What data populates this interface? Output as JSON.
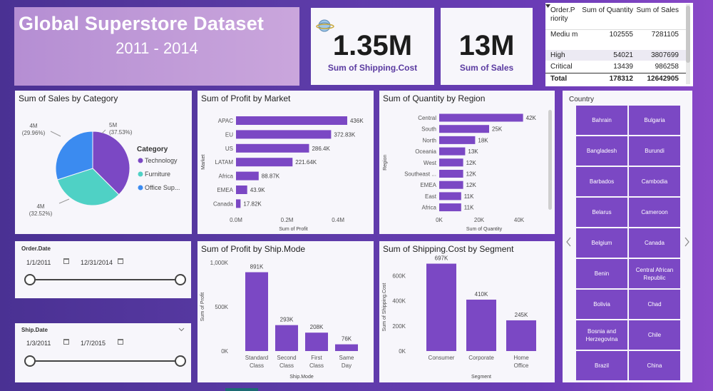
{
  "header": {
    "title": "Global Superstore Dataset",
    "years": "2011 - 2014"
  },
  "kpis": [
    {
      "value": "1.35M",
      "label": "Sum of Shipping.Cost"
    },
    {
      "value": "13M",
      "label": "Sum of Sales"
    }
  ],
  "priority_table": {
    "headers": [
      "Order.P riority",
      "Sum of Quantity",
      "Sum of Sales"
    ],
    "rows": [
      {
        "name": "Mediu m",
        "qty": "102555",
        "sales": "7281105"
      },
      {
        "name": "High",
        "qty": "54021",
        "sales": "3807699"
      },
      {
        "name": "Critical",
        "qty": "13439",
        "sales": "986258"
      }
    ],
    "total": {
      "name": "Total",
      "qty": "178312",
      "sales": "12642905"
    }
  },
  "slicers": {
    "order_date": {
      "label": "Order.Date",
      "start": "1/1/2011",
      "end": "12/31/2014"
    },
    "ship_date": {
      "label": "Ship.Date",
      "start": "1/3/2011",
      "end": "1/7/2015"
    }
  },
  "country": {
    "label": "Country",
    "left_col": [
      "Bahrain",
      "Bangladesh",
      "Barbados",
      "Belarus",
      "Belgium",
      "Benin",
      "Bolivia",
      "Bosnia and Herzegovina",
      "Brazil"
    ],
    "right_col": [
      "Bulgaria",
      "Burundi",
      "Cambodia",
      "Cameroon",
      "Canada",
      "Central African Republic",
      "Chad",
      "Chile",
      "China"
    ]
  },
  "colors": {
    "bar": "#7b48c4",
    "pie": [
      "#7b48c4",
      "#4fd1c5",
      "#3b8bf0"
    ]
  },
  "chart_data": [
    {
      "type": "pie",
      "title": "Sum of Sales by Category",
      "legend_title": "Category",
      "categories": [
        "Technology",
        "Furniture",
        "Office Sup..."
      ],
      "values": [
        4.74,
        4.11,
        3.79
      ],
      "value_labels": [
        "5M",
        "4M",
        "4M"
      ],
      "percent_labels": [
        "(37.53%)",
        "(32.52%)",
        "(29.96%)"
      ]
    },
    {
      "type": "bar",
      "orientation": "horizontal",
      "title": "Sum of Profit by Market",
      "categories": [
        "APAC",
        "EU",
        "US",
        "LATAM",
        "Africa",
        "EMEA",
        "Canada"
      ],
      "values": [
        436,
        372.83,
        286.4,
        221.64,
        88.87,
        43.9,
        17.82
      ],
      "value_labels": [
        "436K",
        "372.83K",
        "286.4K",
        "221.64K",
        "88.87K",
        "43.9K",
        "17.82K"
      ],
      "xlabel": "Sum of Profit",
      "ylabel": "Market",
      "xlim": [
        0,
        450
      ],
      "ticks": [
        0,
        200,
        400
      ],
      "tick_labels": [
        "0.0M",
        "0.2M",
        "0.4M"
      ]
    },
    {
      "type": "bar",
      "orientation": "horizontal",
      "title": "Sum of Quantity by Region",
      "categories": [
        "Central",
        "South",
        "North",
        "Oceania",
        "West",
        "Southeast ...",
        "EMEA",
        "East",
        "Africa"
      ],
      "values": [
        42,
        25,
        18,
        13,
        12,
        12,
        12,
        11,
        11
      ],
      "value_labels": [
        "42K",
        "25K",
        "18K",
        "13K",
        "12K",
        "12K",
        "12K",
        "11K",
        "11K"
      ],
      "xlabel": "Sum of Quantity",
      "ylabel": "Region",
      "xlim": [
        0,
        45
      ],
      "ticks": [
        0,
        20,
        40
      ],
      "tick_labels": [
        "0K",
        "20K",
        "40K"
      ]
    },
    {
      "type": "bar",
      "orientation": "vertical",
      "title": "Sum of Profit by Ship.Mode",
      "categories": [
        "Standard Class",
        "Second Class",
        "First Class",
        "Same Day"
      ],
      "values": [
        891,
        293,
        208,
        76
      ],
      "value_labels": [
        "891K",
        "293K",
        "208K",
        "76K"
      ],
      "xlabel": "Ship.Mode",
      "ylabel": "Sum of Profit",
      "ylim": [
        0,
        1000
      ],
      "ticks": [
        0,
        500,
        1000
      ],
      "tick_labels": [
        "0K",
        "500K",
        "1,000K"
      ]
    },
    {
      "type": "bar",
      "orientation": "vertical",
      "title": "Sum of Shipping.Cost by Segment",
      "categories": [
        "Consumer",
        "Corporate",
        "Home Office"
      ],
      "values": [
        697,
        410,
        245
      ],
      "value_labels": [
        "697K",
        "410K",
        "245K"
      ],
      "xlabel": "Segment",
      "ylabel": "Sum of Shipping.Cost",
      "ylim": [
        0,
        700
      ],
      "ticks": [
        0,
        200,
        400,
        600
      ],
      "tick_labels": [
        "0K",
        "200K",
        "400K",
        "600K"
      ]
    }
  ]
}
